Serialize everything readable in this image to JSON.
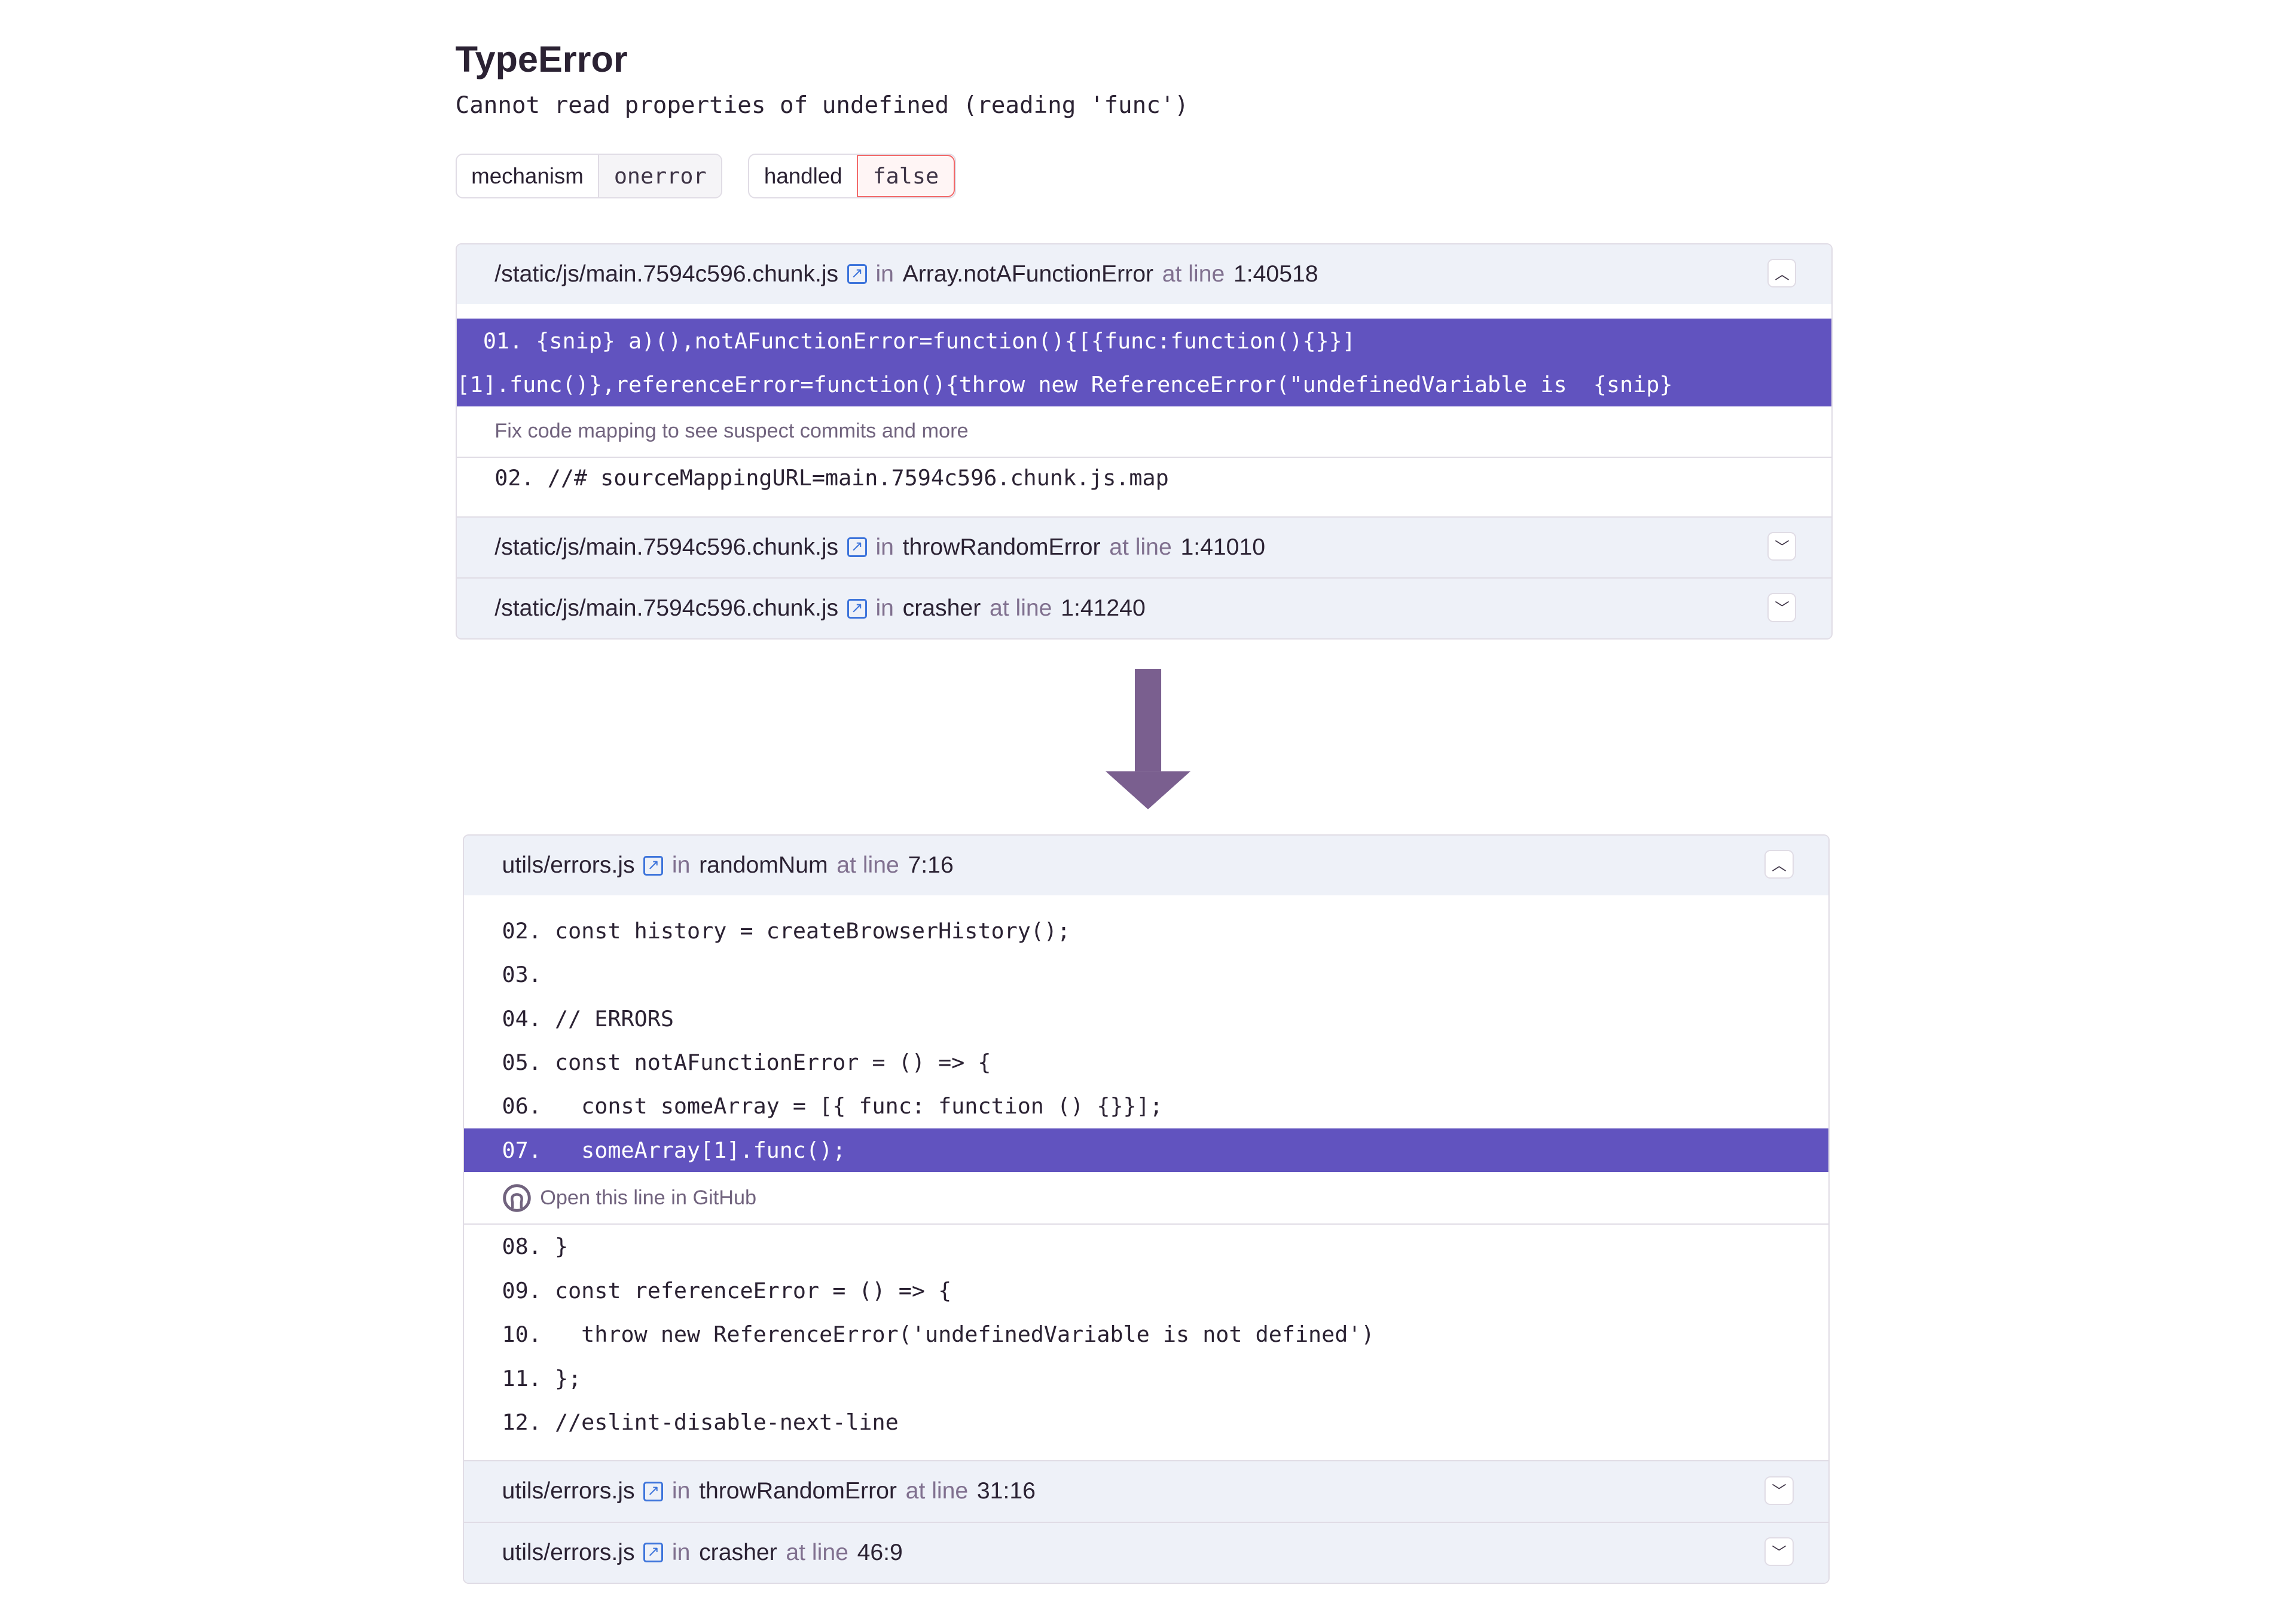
{
  "error": {
    "type": "TypeError",
    "message": "Cannot read properties of undefined (reading 'func')"
  },
  "tags": [
    {
      "key": "mechanism",
      "value": "onerror"
    },
    {
      "key": "handled",
      "value": "false"
    }
  ],
  "colors": {
    "highlight": "#6153bf",
    "frame_bg": "#eef1f8",
    "arrow": "#7a5f8f",
    "false_border": "#f26a6a"
  },
  "before": {
    "frames": [
      {
        "file": "/static/js/main.7594c596.chunk.js",
        "in": "in",
        "function": "Array.notAFunctionError",
        "at": "at line",
        "line": "1:40518",
        "expanded": true
      },
      {
        "file": "/static/js/main.7594c596.chunk.js",
        "in": "in",
        "function": "throwRandomError",
        "at": "at line",
        "line": "1:41010",
        "expanded": false
      },
      {
        "file": "/static/js/main.7594c596.chunk.js",
        "in": "in",
        "function": "crasher",
        "at": "at line",
        "line": "1:41240",
        "expanded": false
      }
    ],
    "highlight_lines": [
      "  01. {snip} a)(),notAFunctionError=function(){[{func:function(){}}]",
      "[1].func()},referenceError=function(){throw new ReferenceError(\"undefinedVariable is  {snip}"
    ],
    "note": "Fix code mapping to see suspect commits and more",
    "after_lines": [
      "02. //# sourceMappingURL=main.7594c596.chunk.js.map"
    ]
  },
  "after": {
    "frames": [
      {
        "file": "utils/errors.js",
        "in": "in",
        "function": "randomNum",
        "at": "at line",
        "line": "7:16",
        "expanded": true
      },
      {
        "file": "utils/errors.js",
        "in": "in",
        "function": "throwRandomError",
        "at": "at line",
        "line": "31:16",
        "expanded": false
      },
      {
        "file": "utils/errors.js",
        "in": "in",
        "function": "crasher",
        "at": "at line",
        "line": "46:9",
        "expanded": false
      }
    ],
    "lines_before": [
      "02. const history = createBrowserHistory();",
      "03.",
      "04. // ERRORS",
      "05. const notAFunctionError = () => {",
      "06.   const someArray = [{ func: function () {}}];"
    ],
    "highlight_line": "07.   someArray[1].func();",
    "github_link": "Open this line in GitHub",
    "lines_after": [
      "08. }",
      "09. const referenceError = () => {",
      "10.   throw new ReferenceError('undefinedVariable is not defined')",
      "11. };",
      "12. //eslint-disable-next-line"
    ]
  }
}
